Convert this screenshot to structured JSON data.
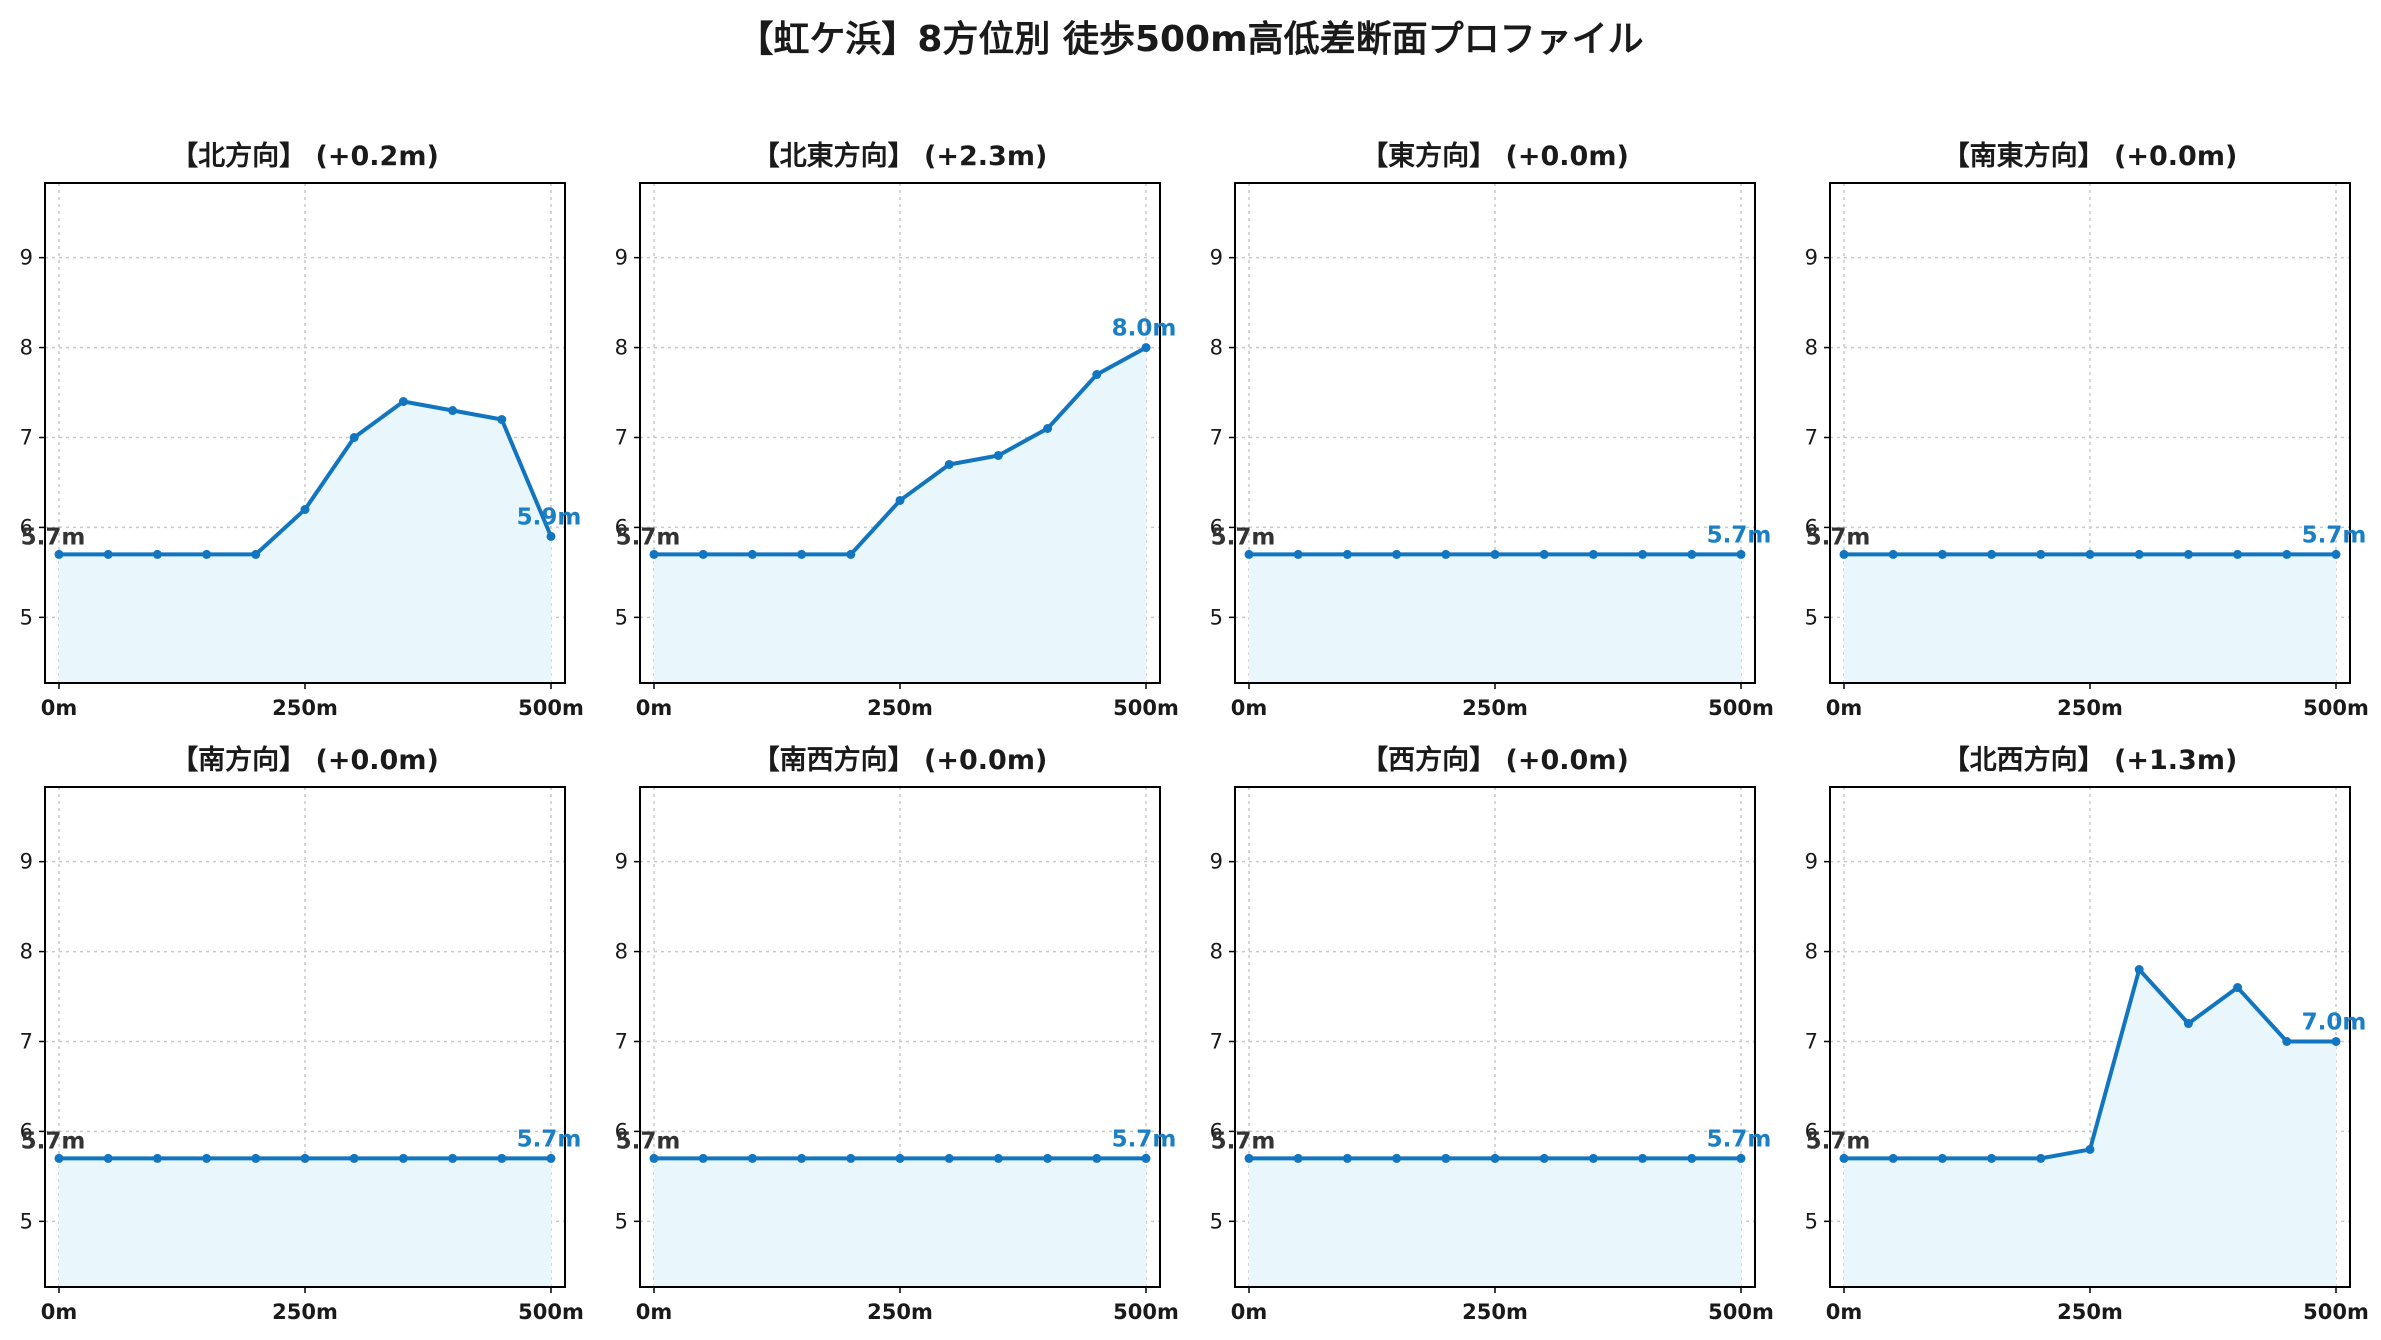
{
  "title": "【虹ケ浜】8方位別 徒歩500m高低差断面プロファイル",
  "colors": {
    "line": "#1275bf",
    "fill": "#e9f6fc",
    "start_label": "#333333",
    "end_label": "#1a7fc4",
    "grid": "#c9c9c9"
  },
  "chart_data": [
    {
      "type": "area",
      "title": "【北方向】 (+0.2m)",
      "x": [
        0,
        50,
        100,
        150,
        200,
        250,
        300,
        350,
        400,
        450,
        500
      ],
      "values": [
        5.7,
        5.7,
        5.7,
        5.7,
        5.7,
        6.2,
        7.0,
        7.4,
        7.3,
        7.2,
        5.9
      ],
      "start_label": "5.7m",
      "end_label": "5.9m",
      "xticks": [
        "0m",
        "250m",
        "500m"
      ],
      "yticks": [
        "5",
        "6",
        "7",
        "8",
        "9"
      ],
      "xlim": [
        0,
        500
      ],
      "ylim": [
        4.27,
        9.83
      ],
      "grid": true
    },
    {
      "type": "area",
      "title": "【北東方向】 (+2.3m)",
      "x": [
        0,
        50,
        100,
        150,
        200,
        250,
        300,
        350,
        400,
        450,
        500
      ],
      "values": [
        5.7,
        5.7,
        5.7,
        5.7,
        5.7,
        6.3,
        6.7,
        6.8,
        7.1,
        7.7,
        8.0
      ],
      "start_label": "5.7m",
      "end_label": "8.0m",
      "xticks": [
        "0m",
        "250m",
        "500m"
      ],
      "yticks": [
        "5",
        "6",
        "7",
        "8",
        "9"
      ],
      "xlim": [
        0,
        500
      ],
      "ylim": [
        4.27,
        9.83
      ],
      "grid": true
    },
    {
      "type": "area",
      "title": "【東方向】 (+0.0m)",
      "x": [
        0,
        50,
        100,
        150,
        200,
        250,
        300,
        350,
        400,
        450,
        500
      ],
      "values": [
        5.7,
        5.7,
        5.7,
        5.7,
        5.7,
        5.7,
        5.7,
        5.7,
        5.7,
        5.7,
        5.7
      ],
      "start_label": "5.7m",
      "end_label": "5.7m",
      "xticks": [
        "0m",
        "250m",
        "500m"
      ],
      "yticks": [
        "5",
        "6",
        "7",
        "8",
        "9"
      ],
      "xlim": [
        0,
        500
      ],
      "ylim": [
        4.27,
        9.83
      ],
      "grid": true
    },
    {
      "type": "area",
      "title": "【南東方向】 (+0.0m)",
      "x": [
        0,
        50,
        100,
        150,
        200,
        250,
        300,
        350,
        400,
        450,
        500
      ],
      "values": [
        5.7,
        5.7,
        5.7,
        5.7,
        5.7,
        5.7,
        5.7,
        5.7,
        5.7,
        5.7,
        5.7
      ],
      "start_label": "5.7m",
      "end_label": "5.7m",
      "xticks": [
        "0m",
        "250m",
        "500m"
      ],
      "yticks": [
        "5",
        "6",
        "7",
        "8",
        "9"
      ],
      "xlim": [
        0,
        500
      ],
      "ylim": [
        4.27,
        9.83
      ],
      "grid": true
    },
    {
      "type": "area",
      "title": "【南方向】 (+0.0m)",
      "x": [
        0,
        50,
        100,
        150,
        200,
        250,
        300,
        350,
        400,
        450,
        500
      ],
      "values": [
        5.7,
        5.7,
        5.7,
        5.7,
        5.7,
        5.7,
        5.7,
        5.7,
        5.7,
        5.7,
        5.7
      ],
      "start_label": "5.7m",
      "end_label": "5.7m",
      "xticks": [
        "0m",
        "250m",
        "500m"
      ],
      "yticks": [
        "5",
        "6",
        "7",
        "8",
        "9"
      ],
      "xlim": [
        0,
        500
      ],
      "ylim": [
        4.27,
        9.83
      ],
      "grid": true
    },
    {
      "type": "area",
      "title": "【南西方向】 (+0.0m)",
      "x": [
        0,
        50,
        100,
        150,
        200,
        250,
        300,
        350,
        400,
        450,
        500
      ],
      "values": [
        5.7,
        5.7,
        5.7,
        5.7,
        5.7,
        5.7,
        5.7,
        5.7,
        5.7,
        5.7,
        5.7
      ],
      "start_label": "5.7m",
      "end_label": "5.7m",
      "xticks": [
        "0m",
        "250m",
        "500m"
      ],
      "yticks": [
        "5",
        "6",
        "7",
        "8",
        "9"
      ],
      "xlim": [
        0,
        500
      ],
      "ylim": [
        4.27,
        9.83
      ],
      "grid": true
    },
    {
      "type": "area",
      "title": "【西方向】 (+0.0m)",
      "x": [
        0,
        50,
        100,
        150,
        200,
        250,
        300,
        350,
        400,
        450,
        500
      ],
      "values": [
        5.7,
        5.7,
        5.7,
        5.7,
        5.7,
        5.7,
        5.7,
        5.7,
        5.7,
        5.7,
        5.7
      ],
      "start_label": "5.7m",
      "end_label": "5.7m",
      "xticks": [
        "0m",
        "250m",
        "500m"
      ],
      "yticks": [
        "5",
        "6",
        "7",
        "8",
        "9"
      ],
      "xlim": [
        0,
        500
      ],
      "ylim": [
        4.27,
        9.83
      ],
      "grid": true
    },
    {
      "type": "area",
      "title": "【北西方向】 (+1.3m)",
      "x": [
        0,
        50,
        100,
        150,
        200,
        250,
        300,
        350,
        400,
        450,
        500
      ],
      "values": [
        5.7,
        5.7,
        5.7,
        5.7,
        5.7,
        5.8,
        7.8,
        7.2,
        7.6,
        7.0,
        7.0
      ],
      "start_label": "5.7m",
      "end_label": "7.0m",
      "xticks": [
        "0m",
        "250m",
        "500m"
      ],
      "yticks": [
        "5",
        "6",
        "7",
        "8",
        "9"
      ],
      "xlim": [
        0,
        500
      ],
      "ylim": [
        4.27,
        9.83
      ],
      "grid": true
    }
  ]
}
